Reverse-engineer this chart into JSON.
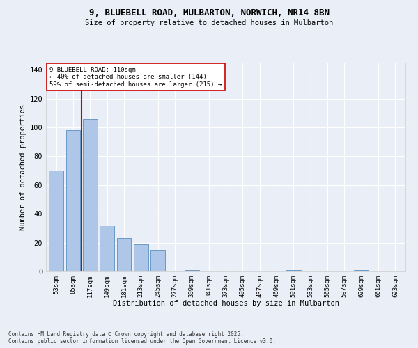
{
  "title_line1": "9, BLUEBELL ROAD, MULBARTON, NORWICH, NR14 8BN",
  "title_line2": "Size of property relative to detached houses in Mulbarton",
  "xlabel": "Distribution of detached houses by size in Mulbarton",
  "ylabel": "Number of detached properties",
  "categories": [
    "53sqm",
    "85sqm",
    "117sqm",
    "149sqm",
    "181sqm",
    "213sqm",
    "245sqm",
    "277sqm",
    "309sqm",
    "341sqm",
    "373sqm",
    "405sqm",
    "437sqm",
    "469sqm",
    "501sqm",
    "533sqm",
    "565sqm",
    "597sqm",
    "629sqm",
    "661sqm",
    "693sqm"
  ],
  "values": [
    70,
    98,
    106,
    32,
    23,
    19,
    15,
    0,
    1,
    0,
    0,
    0,
    0,
    0,
    1,
    0,
    0,
    0,
    1,
    0,
    0
  ],
  "bar_color": "#aec6e8",
  "bar_edge_color": "#5a8fc0",
  "bar_width": 0.85,
  "vline_x": 1.5,
  "vline_color": "#cc0000",
  "annotation_text": "9 BLUEBELL ROAD: 110sqm\n← 40% of detached houses are smaller (144)\n59% of semi-detached houses are larger (215) →",
  "annotation_box_color": "#ffffff",
  "annotation_box_edge_color": "#cc0000",
  "ylim": [
    0,
    145
  ],
  "yticks": [
    0,
    20,
    40,
    60,
    80,
    100,
    120,
    140
  ],
  "bg_color": "#eaeff7",
  "grid_color": "#ffffff",
  "footnote": "Contains HM Land Registry data © Crown copyright and database right 2025.\nContains public sector information licensed under the Open Government Licence v3.0."
}
